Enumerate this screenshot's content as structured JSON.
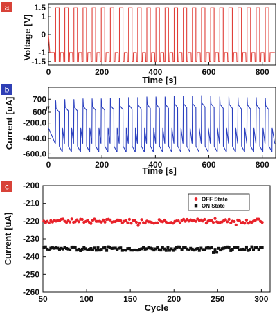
{
  "chart_data": [
    {
      "panel": "a",
      "type": "line",
      "xlabel": "Time [s]",
      "ylabel": "Voltage [V]",
      "xlim": [
        0,
        850
      ],
      "ylim": [
        -1.7,
        1.7
      ],
      "xticks": [
        0,
        200,
        400,
        600,
        800
      ],
      "yticks": [
        1.5,
        1,
        0,
        -1,
        -1.5
      ],
      "ytick_labels": [
        "1.5",
        "1",
        "0",
        "-1",
        "-1.5"
      ],
      "color": "#e0403a",
      "pulse_period_s": 34.1,
      "first_pulse_start_s": 27,
      "pulse_width_s": 13,
      "levels": {
        "set": 1.5,
        "read": -1,
        "reset": -1.5
      },
      "start": {
        "t0": 0,
        "v0": 0,
        "t1": 5,
        "v1": -1
      }
    },
    {
      "panel": "b",
      "type": "line",
      "xlabel": "Time [s]",
      "ylabel": "Current [uA]",
      "xlim": [
        0,
        850
      ],
      "yticks_upper": [
        700,
        600
      ],
      "yticks_lower": [
        -200.0,
        -400.0,
        -600.0
      ],
      "ytick_labels": [
        "700",
        "600",
        "-200.0",
        "-400.0",
        "-600.0"
      ],
      "axis_break_marker": "//",
      "xticks": [
        0,
        200,
        400,
        600,
        800
      ],
      "color": "#2a3fbf",
      "pulse_period_s": 34.1,
      "first_pulse_start_s": 27,
      "pulse_width_s": 13,
      "on_peak_uA": [
        690,
        700,
        700,
        705,
        705,
        705,
        710,
        710,
        715,
        715,
        720,
        720,
        720,
        725,
        725,
        725,
        730,
        725,
        720,
        720,
        715,
        715,
        715,
        710
      ],
      "off_mid_uA": -265,
      "off_end_uA": -470,
      "on_mid_uA": -500,
      "on_end_uA": -575
    },
    {
      "panel": "c",
      "type": "scatter",
      "xlabel": "Cycle",
      "ylabel": "Current [uA]",
      "xlim": [
        50,
        310
      ],
      "ylim": [
        -260,
        -200
      ],
      "xticks": [
        50,
        100,
        150,
        200,
        250,
        300
      ],
      "yticks": [
        -200,
        -210,
        -220,
        -230,
        -240,
        -250,
        -260
      ],
      "series": [
        {
          "name": "OFF State",
          "color": "#e8222a",
          "marker": "circle",
          "x_start": 51,
          "x_end": 302,
          "mean": -220,
          "spread": 1.2
        },
        {
          "name": "ON State",
          "color": "#111111",
          "marker": "square",
          "x_start": 51,
          "x_end": 302,
          "mean": -235.5,
          "spread": 1.0
        }
      ]
    }
  ]
}
